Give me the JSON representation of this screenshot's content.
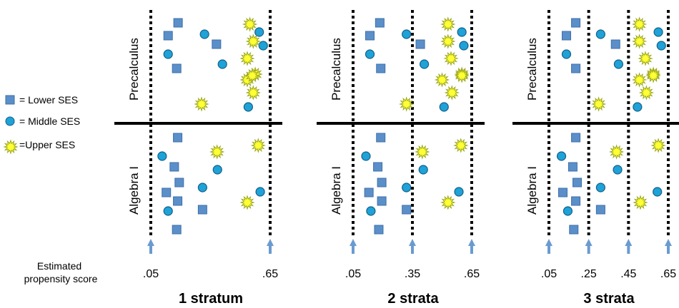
{
  "legend": {
    "lower": "= Lower SES",
    "middle": "= Middle SES",
    "upper": "=Upper SES"
  },
  "axis_caption": [
    "Estimated",
    "propensity score"
  ],
  "colors": {
    "square": "#5b8fc9",
    "square_stroke": "#3d6fa8",
    "circle": "#1ea2d8",
    "circle_stroke": "#145f86",
    "star": "#ffff33",
    "star_stroke": "#9aa81e",
    "arrow": "#6a9bd0",
    "line": "#000000"
  },
  "icons": {
    "lower": "square-icon",
    "middle": "circle-icon",
    "upper": "starburst-icon",
    "arrow": "up-arrow-icon"
  },
  "panels": [
    {
      "title": "1 stratum",
      "top_label": "Precalculus",
      "bottom_label": "Algebra I",
      "ticks": [
        ".05",
        ".65"
      ],
      "top": [
        {
          "type": "square",
          "score": 0.187
        },
        {
          "type": "square",
          "score": 0.137
        },
        {
          "type": "square",
          "score": 0.18
        },
        {
          "type": "square",
          "score": 0.38
        },
        {
          "type": "circle",
          "score": 0.137
        },
        {
          "type": "circle",
          "score": 0.32
        },
        {
          "type": "circle",
          "score": 0.41
        },
        {
          "type": "circle",
          "score": 0.595
        },
        {
          "type": "circle",
          "score": 0.615
        },
        {
          "type": "circle",
          "score": 0.54
        },
        {
          "type": "star",
          "score": 0.548
        },
        {
          "type": "star",
          "score": 0.565
        },
        {
          "type": "star",
          "score": 0.535
        },
        {
          "type": "star",
          "score": 0.575
        },
        {
          "type": "star",
          "score": 0.535
        },
        {
          "type": "star",
          "score": 0.56
        },
        {
          "type": "star",
          "score": 0.565
        },
        {
          "type": "star",
          "score": 0.305
        }
      ],
      "bottom": [
        {
          "type": "square",
          "score": 0.185
        },
        {
          "type": "square",
          "score": 0.168
        },
        {
          "type": "square",
          "score": 0.193
        },
        {
          "type": "square",
          "score": 0.128
        },
        {
          "type": "square",
          "score": 0.185
        },
        {
          "type": "square",
          "score": 0.31
        },
        {
          "type": "square",
          "score": 0.18
        },
        {
          "type": "circle",
          "score": 0.107
        },
        {
          "type": "circle",
          "score": 0.385
        },
        {
          "type": "circle",
          "score": 0.31
        },
        {
          "type": "circle",
          "score": 0.6
        },
        {
          "type": "circle",
          "score": 0.137
        },
        {
          "type": "star",
          "score": 0.383
        },
        {
          "type": "star",
          "score": 0.59
        },
        {
          "type": "star",
          "score": 0.535
        }
      ]
    },
    {
      "title": "2 strata",
      "top_label": "Precalculus",
      "bottom_label": "Algebra I",
      "ticks": [
        ".05",
        ".35",
        ".65"
      ],
      "top": [
        {
          "type": "square",
          "score": 0.185
        },
        {
          "type": "square",
          "score": 0.135
        },
        {
          "type": "square",
          "score": 0.19
        },
        {
          "type": "square",
          "score": 0.39
        },
        {
          "type": "circle",
          "score": 0.135
        },
        {
          "type": "circle",
          "score": 0.32
        },
        {
          "type": "circle",
          "score": 0.41
        },
        {
          "type": "circle",
          "score": 0.6
        },
        {
          "type": "circle",
          "score": 0.61
        },
        {
          "type": "circle",
          "score": 0.51
        },
        {
          "type": "star",
          "score": 0.53
        },
        {
          "type": "star",
          "score": 0.53
        },
        {
          "type": "star",
          "score": 0.545
        },
        {
          "type": "star",
          "score": 0.6
        },
        {
          "type": "star",
          "score": 0.5
        },
        {
          "type": "star",
          "score": 0.6
        },
        {
          "type": "star",
          "score": 0.55
        },
        {
          "type": "star",
          "score": 0.32
        }
      ],
      "bottom": [
        {
          "type": "square",
          "score": 0.19
        },
        {
          "type": "square",
          "score": 0.175
        },
        {
          "type": "square",
          "score": 0.195
        },
        {
          "type": "square",
          "score": 0.13
        },
        {
          "type": "square",
          "score": 0.195
        },
        {
          "type": "square",
          "score": 0.32
        },
        {
          "type": "square",
          "score": 0.18
        },
        {
          "type": "circle",
          "score": 0.115
        },
        {
          "type": "circle",
          "score": 0.405
        },
        {
          "type": "circle",
          "score": 0.32
        },
        {
          "type": "circle",
          "score": 0.585
        },
        {
          "type": "circle",
          "score": 0.14
        },
        {
          "type": "star",
          "score": 0.4
        },
        {
          "type": "star",
          "score": 0.595
        },
        {
          "type": "star",
          "score": 0.53
        }
      ]
    },
    {
      "title": "3 strata",
      "top_label": "Precalculus",
      "bottom_label": "Algebra I",
      "ticks": [
        ".05",
        ".25",
        ".45",
        ".65"
      ],
      "top": [
        {
          "type": "square",
          "score": 0.185
        },
        {
          "type": "square",
          "score": 0.138
        },
        {
          "type": "square",
          "score": 0.185
        },
        {
          "type": "square",
          "score": 0.385
        },
        {
          "type": "circle",
          "score": 0.138
        },
        {
          "type": "circle",
          "score": 0.31
        },
        {
          "type": "circle",
          "score": 0.4
        },
        {
          "type": "circle",
          "score": 0.6
        },
        {
          "type": "circle",
          "score": 0.615
        },
        {
          "type": "circle",
          "score": 0.495
        },
        {
          "type": "star",
          "score": 0.505
        },
        {
          "type": "star",
          "score": 0.505
        },
        {
          "type": "star",
          "score": 0.535
        },
        {
          "type": "star",
          "score": 0.575
        },
        {
          "type": "star",
          "score": 0.505
        },
        {
          "type": "star",
          "score": 0.575
        },
        {
          "type": "star",
          "score": 0.54
        },
        {
          "type": "star",
          "score": 0.3
        }
      ],
      "bottom": [
        {
          "type": "square",
          "score": 0.185
        },
        {
          "type": "square",
          "score": 0.17
        },
        {
          "type": "square",
          "score": 0.192
        },
        {
          "type": "square",
          "score": 0.12
        },
        {
          "type": "square",
          "score": 0.185
        },
        {
          "type": "square",
          "score": 0.31
        },
        {
          "type": "square",
          "score": 0.175
        },
        {
          "type": "circle",
          "score": 0.113
        },
        {
          "type": "circle",
          "score": 0.395
        },
        {
          "type": "circle",
          "score": 0.31
        },
        {
          "type": "circle",
          "score": 0.595
        },
        {
          "type": "circle",
          "score": 0.145
        },
        {
          "type": "star",
          "score": 0.39
        },
        {
          "type": "star",
          "score": 0.6
        },
        {
          "type": "star",
          "score": 0.51
        }
      ]
    }
  ]
}
